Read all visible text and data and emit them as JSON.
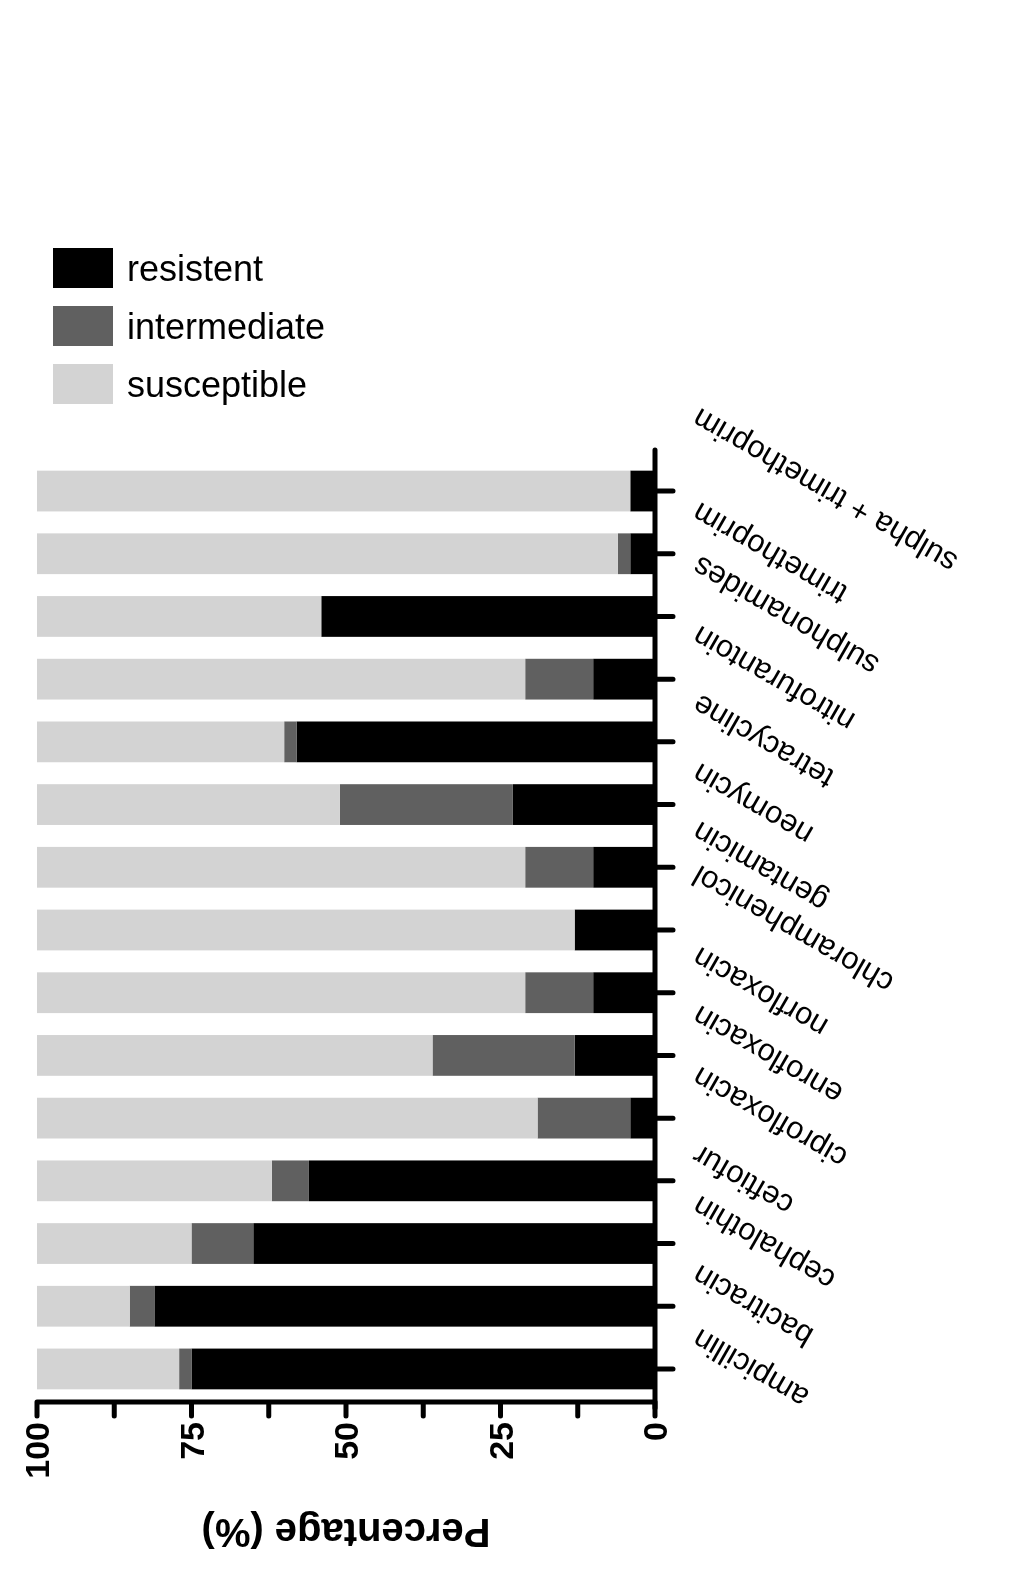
{
  "chart_data": {
    "type": "bar",
    "orientation": "horizontal",
    "stacked": true,
    "xlabel": "Percentage (%)",
    "categories": [
      "sulpha + trimethoprim",
      "trimethoprim",
      "sulphonamides",
      "nitrofurantoin",
      "tetracycline",
      "neomycin",
      "gentamicin",
      "chloramphenicol",
      "norfloxacin",
      "enrofloxacin",
      "ciprofloxacin",
      "ceftiofur",
      "cephalothin",
      "bacitracin",
      "ampicillin"
    ],
    "series": [
      {
        "name": "resistent",
        "color": "#000000",
        "values": [
          4,
          4,
          54,
          10,
          58,
          23,
          10,
          13,
          10,
          13,
          4,
          56,
          65,
          81,
          75
        ]
      },
      {
        "name": "intermediate",
        "color": "#606060",
        "values": [
          0,
          2,
          0,
          11,
          2,
          28,
          11,
          0,
          11,
          23,
          15,
          6,
          10,
          4,
          2
        ]
      },
      {
        "name": "susceptible",
        "color": "#d3d3d3",
        "values": [
          96,
          94,
          46,
          79,
          40,
          49,
          79,
          87,
          79,
          64,
          81,
          38,
          25,
          15,
          23
        ]
      }
    ],
    "xlim": [
      100,
      0
    ],
    "xticks": [
      100,
      {
        "value": 87.5,
        "label": null
      },
      75,
      {
        "value": 62.5,
        "label": null
      },
      50,
      {
        "value": 37.5,
        "label": null
      },
      25,
      {
        "value": 12.5,
        "label": null
      },
      0
    ],
    "legend": "top",
    "grid": false
  }
}
